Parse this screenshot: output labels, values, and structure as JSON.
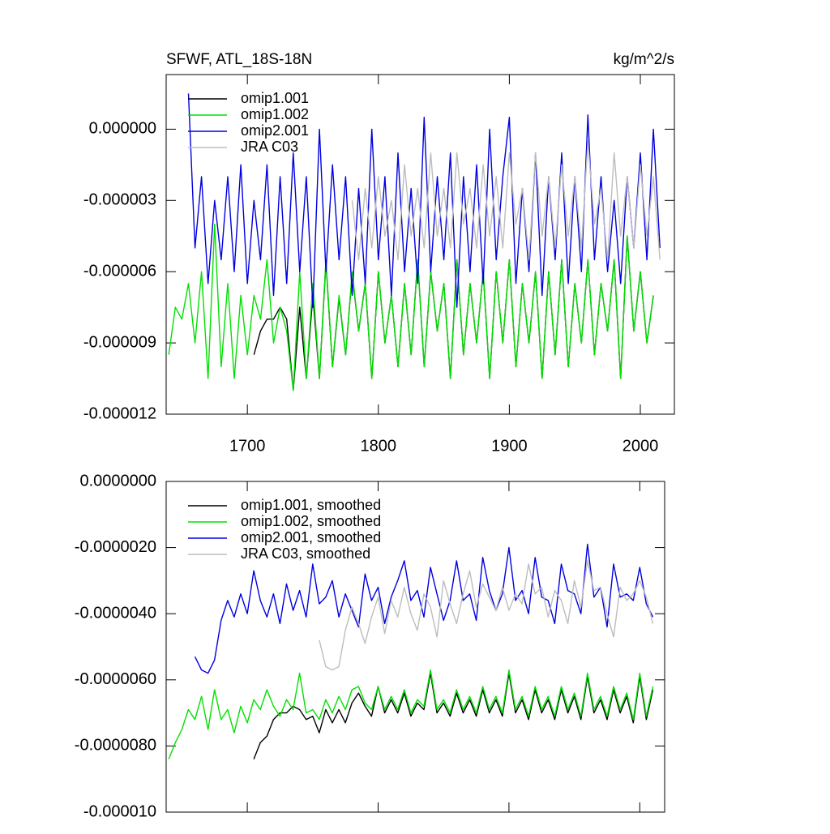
{
  "chart_data": [
    {
      "type": "line",
      "title": "SFWF, ATL_18S-18N",
      "units": "kg/m^2/s",
      "legend": "upper left",
      "xtick_labels": true,
      "xlim": [
        1638,
        2026
      ],
      "xticks": [
        1700,
        1800,
        1900,
        2000
      ],
      "ylim": [
        -1.2e-05,
        2.3e-06
      ],
      "yticks": [
        {
          "value": 0,
          "label": "0.000000"
        },
        {
          "value": -3e-06,
          "label": "-0.000003"
        },
        {
          "value": -6e-06,
          "label": "-0.000006"
        },
        {
          "value": -9e-06,
          "label": "-0.000009"
        },
        {
          "value": -1.2e-05,
          "label": "-0.000012"
        }
      ],
      "x": [
        1640,
        1645,
        1650,
        1655,
        1660,
        1665,
        1670,
        1675,
        1680,
        1685,
        1690,
        1695,
        1700,
        1705,
        1710,
        1715,
        1720,
        1725,
        1730,
        1735,
        1740,
        1745,
        1750,
        1755,
        1760,
        1765,
        1770,
        1775,
        1780,
        1785,
        1790,
        1795,
        1800,
        1805,
        1810,
        1815,
        1820,
        1825,
        1830,
        1835,
        1840,
        1845,
        1850,
        1855,
        1860,
        1865,
        1870,
        1875,
        1880,
        1885,
        1890,
        1895,
        1900,
        1905,
        1910,
        1915,
        1920,
        1925,
        1930,
        1935,
        1940,
        1945,
        1950,
        1955,
        1960,
        1965,
        1970,
        1975,
        1980,
        1985,
        1990,
        1995,
        2000,
        2005,
        2010,
        2015
      ],
      "series": [
        {
          "name": "omip1.001",
          "color": "#000000",
          "values": [
            null,
            null,
            null,
            null,
            null,
            null,
            null,
            null,
            null,
            null,
            null,
            null,
            null,
            -9.5e-06,
            -8.5e-06,
            -8e-06,
            -8e-06,
            -7.5e-06,
            -8e-06,
            -1.1e-05,
            -7.5e-06,
            -1.05e-05,
            -7e-06,
            -1.05e-05,
            -5.6e-06,
            -1e-05,
            -7.1e-06,
            -9.5e-06,
            -6.1e-06,
            -8.5e-06,
            -6.5e-06,
            -1.05e-05,
            -6e-06,
            -9e-06,
            -7e-06,
            -1e-05,
            -6.5e-06,
            -9.5e-06,
            -5.5e-06,
            -1e-05,
            -6e-06,
            -8.5e-06,
            -6.5e-06,
            -1.05e-05,
            -5.5e-06,
            -9.5e-06,
            -6.5e-06,
            -9e-06,
            -6e-06,
            -1.05e-05,
            -6e-06,
            -9e-06,
            -5.5e-06,
            -1e-05,
            -6.5e-06,
            -9e-06,
            -6e-06,
            -1.05e-05,
            -6e-06,
            -9.5e-06,
            -5.5e-06,
            -1e-05,
            -6.5e-06,
            -9e-06,
            -5.5e-06,
            -9.5e-06,
            -6.5e-06,
            -8.5e-06,
            -5.5e-06,
            -1.05e-05,
            -4.5e-06,
            -8.5e-06,
            -6e-06,
            -9e-06,
            -7e-06,
            null
          ]
        },
        {
          "name": "omip1.002",
          "color": "#00e000",
          "values": [
            -9.5e-06,
            -7.5e-06,
            -8e-06,
            -6.5e-06,
            -9e-06,
            -6e-06,
            -1.05e-05,
            -4e-06,
            -1e-05,
            -6.5e-06,
            -1.05e-05,
            -7e-06,
            -9.5e-06,
            -7e-06,
            -8e-06,
            -5.5e-06,
            -9e-06,
            -7.5e-06,
            -8.5e-06,
            -1.1e-05,
            -6e-06,
            -1.05e-05,
            -6.5e-06,
            -1.05e-05,
            -5.5e-06,
            -1e-05,
            -7e-06,
            -9.5e-06,
            -6e-06,
            -8.5e-06,
            -6.5e-06,
            -1.05e-05,
            -6e-06,
            -9e-06,
            -7e-06,
            -1e-05,
            -6.5e-06,
            -9.5e-06,
            -5.5e-06,
            -1e-05,
            -6e-06,
            -8.5e-06,
            -6.5e-06,
            -1.05e-05,
            -5.5e-06,
            -9.5e-06,
            -6.5e-06,
            -9e-06,
            -6e-06,
            -1.05e-05,
            -6e-06,
            -9e-06,
            -5.5e-06,
            -1e-05,
            -6.5e-06,
            -9e-06,
            -6e-06,
            -1.05e-05,
            -6e-06,
            -9.5e-06,
            -5.5e-06,
            -1e-05,
            -6.5e-06,
            -9e-06,
            -5.5e-06,
            -9.5e-06,
            -6.5e-06,
            -8.5e-06,
            -5.5e-06,
            -1.05e-05,
            -4.5e-06,
            -8.5e-06,
            -6e-06,
            -9e-06,
            -7e-06,
            null
          ]
        },
        {
          "name": "omip2.001",
          "color": "#0000e0",
          "values": [
            null,
            null,
            null,
            1.5e-06,
            -5e-06,
            -2e-06,
            -6.5e-06,
            -3e-06,
            -5.5e-06,
            -2e-06,
            -6e-06,
            -1.5e-06,
            -6.5e-06,
            -3e-06,
            -5.5e-06,
            -1.5e-06,
            -7e-06,
            -2e-06,
            -6.5e-06,
            -1e-06,
            -6e-06,
            -2e-06,
            -7.5e-06,
            0,
            -6e-06,
            -1.5e-06,
            -5.5e-06,
            -2e-06,
            -7e-06,
            -2.5e-06,
            -6.5e-06,
            0,
            -5.5e-06,
            -2e-06,
            -7e-06,
            -1e-06,
            -6e-06,
            -2.5e-06,
            -6.5e-06,
            5e-07,
            -6e-06,
            -2e-06,
            -5.5e-06,
            -1e-06,
            -7.5e-06,
            -2e-06,
            -6e-06,
            -1.5e-06,
            -6.5e-06,
            0,
            -5.5e-06,
            -2e-06,
            5e-07,
            -6.5e-06,
            -2.5e-06,
            -6e-06,
            -1e-06,
            -7e-06,
            -2e-06,
            -5.5e-06,
            -1e-06,
            -6.5e-06,
            -2e-06,
            -6e-06,
            6e-07,
            -5.5e-06,
            -2e-06,
            -6e-06,
            -3e-06,
            -6.5e-06,
            -2e-06,
            -5e-06,
            -1e-06,
            -5.5e-06,
            0,
            -5e-06
          ]
        },
        {
          "name": "JRA C03",
          "color": "#bdbdbd",
          "values": [
            null,
            null,
            null,
            null,
            null,
            null,
            null,
            null,
            null,
            null,
            null,
            null,
            null,
            null,
            null,
            null,
            null,
            null,
            null,
            null,
            null,
            null,
            null,
            null,
            null,
            null,
            null,
            null,
            -3e-06,
            -5.5e-06,
            -2.5e-06,
            -5e-06,
            -2e-06,
            -4.5e-06,
            -3e-06,
            -5.5e-06,
            -1.5e-06,
            -4.5e-06,
            -2.5e-06,
            -5e-06,
            -1e-06,
            -4.5e-06,
            -2.5e-06,
            -5e-06,
            -1e-06,
            -4e-06,
            -2.5e-06,
            -5e-06,
            -1.5e-06,
            -4.5e-06,
            -2e-06,
            -5e-06,
            -1e-06,
            -4e-06,
            -2.5e-06,
            -5.5e-06,
            -1e-06,
            -4.5e-06,
            -2e-06,
            -5e-06,
            -1.5e-06,
            -4.5e-06,
            -2e-06,
            -5e-06,
            -5e-07,
            -4e-06,
            -2.5e-06,
            -5.5e-06,
            -1e-06,
            -4.5e-06,
            -2e-06,
            -5e-06,
            -1.5e-06,
            -4.5e-06,
            -2e-06,
            -5.5e-06
          ]
        }
      ]
    },
    {
      "type": "line",
      "legend": "upper left",
      "xtick_labels": false,
      "xlim": [
        1638,
        2019
      ],
      "xticks": [
        1700,
        1800,
        1900,
        2000
      ],
      "ylim": [
        -1e-05,
        0
      ],
      "yticks": [
        {
          "value": 0,
          "label": "0.0000000"
        },
        {
          "value": -2e-06,
          "label": "-0.0000020"
        },
        {
          "value": -4e-06,
          "label": "-0.0000040"
        },
        {
          "value": -6e-06,
          "label": "-0.0000060"
        },
        {
          "value": -8e-06,
          "label": "-0.0000080"
        },
        {
          "value": -1e-05,
          "label": "-0.000010"
        }
      ],
      "x": [
        1640,
        1645,
        1650,
        1655,
        1660,
        1665,
        1670,
        1675,
        1680,
        1685,
        1690,
        1695,
        1700,
        1705,
        1710,
        1715,
        1720,
        1725,
        1730,
        1735,
        1740,
        1745,
        1750,
        1755,
        1760,
        1765,
        1770,
        1775,
        1780,
        1785,
        1790,
        1795,
        1800,
        1805,
        1810,
        1815,
        1820,
        1825,
        1830,
        1835,
        1840,
        1845,
        1850,
        1855,
        1860,
        1865,
        1870,
        1875,
        1880,
        1885,
        1890,
        1895,
        1900,
        1905,
        1910,
        1915,
        1920,
        1925,
        1930,
        1935,
        1940,
        1945,
        1950,
        1955,
        1960,
        1965,
        1970,
        1975,
        1980,
        1985,
        1990,
        1995,
        2000,
        2005,
        2010,
        2015
      ],
      "series": [
        {
          "name": "omip1.001, smoothed",
          "color": "#000000",
          "values": [
            null,
            null,
            null,
            null,
            null,
            null,
            null,
            null,
            null,
            null,
            null,
            null,
            null,
            -8.4e-06,
            -7.9e-06,
            -7.7e-06,
            -7.2e-06,
            -7e-06,
            -7e-06,
            -6.8e-06,
            -6.9e-06,
            -7.2e-06,
            -7.1e-06,
            -7.6e-06,
            -6.9e-06,
            -7.3e-06,
            -6.9e-06,
            -7.3e-06,
            -6.7e-06,
            -6.4e-06,
            -6.8e-06,
            -7.1e-06,
            -6.2e-06,
            -7e-06,
            -6.6e-06,
            -7e-06,
            -6.4e-06,
            -7.1e-06,
            -6.7e-06,
            -6.9e-06,
            -5.8e-06,
            -7e-06,
            -6.7e-06,
            -7.1e-06,
            -6.4e-06,
            -7e-06,
            -6.6e-06,
            -7.1e-06,
            -6.3e-06,
            -7e-06,
            -6.6e-06,
            -7.1e-06,
            -5.8e-06,
            -7e-06,
            -6.6e-06,
            -7.2e-06,
            -6.3e-06,
            -7e-06,
            -6.6e-06,
            -7.2e-06,
            -6.3e-06,
            -7e-06,
            -6.5e-06,
            -7.2e-06,
            -5.9e-06,
            -7e-06,
            -6.6e-06,
            -7.2e-06,
            -6.3e-06,
            -7e-06,
            -6.5e-06,
            -7.3e-06,
            -5.9e-06,
            -7.2e-06,
            -6.3e-06,
            null
          ]
        },
        {
          "name": "omip1.002, smoothed",
          "color": "#00e000",
          "values": [
            -8.4e-06,
            -7.9e-06,
            -7.5e-06,
            -6.9e-06,
            -7.2e-06,
            -6.5e-06,
            -7.5e-06,
            -6.3e-06,
            -7.2e-06,
            -6.9e-06,
            -7.6e-06,
            -6.8e-06,
            -7.3e-06,
            -6.6e-06,
            -6.9e-06,
            -6.3e-06,
            -6.8e-06,
            -7.1e-06,
            -6.6e-06,
            -6.9e-06,
            -5.8e-06,
            -7e-06,
            -6.9e-06,
            -7.2e-06,
            -6.6e-06,
            -7e-06,
            -6.5e-06,
            -6.9e-06,
            -6.3e-06,
            -6.2e-06,
            -6.7e-06,
            -6.9e-06,
            -6.2e-06,
            -6.9e-06,
            -6.5e-06,
            -6.9e-06,
            -6.3e-06,
            -7e-06,
            -6.6e-06,
            -6.8e-06,
            -5.7e-06,
            -6.9e-06,
            -6.6e-06,
            -7e-06,
            -6.3e-06,
            -6.9e-06,
            -6.5e-06,
            -7e-06,
            -6.2e-06,
            -6.9e-06,
            -6.5e-06,
            -7e-06,
            -5.7e-06,
            -6.9e-06,
            -6.5e-06,
            -7.1e-06,
            -6.2e-06,
            -6.9e-06,
            -6.5e-06,
            -7.1e-06,
            -6.2e-06,
            -6.9e-06,
            -6.4e-06,
            -7.1e-06,
            -5.8e-06,
            -6.9e-06,
            -6.5e-06,
            -7.1e-06,
            -6.2e-06,
            -6.9e-06,
            -6.4e-06,
            -7.2e-06,
            -5.8e-06,
            -7.1e-06,
            -6.2e-06,
            null
          ]
        },
        {
          "name": "omip2.001, smoothed",
          "color": "#0000e0",
          "values": [
            null,
            null,
            null,
            null,
            -5.3e-06,
            -5.7e-06,
            -5.8e-06,
            -5.4e-06,
            -4.2e-06,
            -3.6e-06,
            -4.1e-06,
            -3.4e-06,
            -4e-06,
            -2.7e-06,
            -3.6e-06,
            -4.1e-06,
            -3.4e-06,
            -4.3e-06,
            -3.1e-06,
            -3.9e-06,
            -3.3e-06,
            -4.1e-06,
            -2.5e-06,
            -3.7e-06,
            -3.5e-06,
            -3e-06,
            -4.1e-06,
            -3.4e-06,
            -3.9e-06,
            -4.4e-06,
            -2.8e-06,
            -3.6e-06,
            -3.2e-06,
            -4.3e-06,
            -3.5e-06,
            -3e-06,
            -2.4e-06,
            -3.6e-06,
            -3.3e-06,
            -4.1e-06,
            -2.6e-06,
            -3.4e-06,
            -4.2e-06,
            -3.6e-06,
            -2.4e-06,
            -3.6e-06,
            -3.4e-06,
            -4.2e-06,
            -2.3e-06,
            -3.3e-06,
            -3.9e-06,
            -3.4e-06,
            -2e-06,
            -3.6e-06,
            -3.3e-06,
            -4e-06,
            -2.3e-06,
            -3.5e-06,
            -3.6e-06,
            -4.3e-06,
            -2.5e-06,
            -3.3e-06,
            -3.4e-06,
            -4e-06,
            -1.9e-06,
            -3.5e-06,
            -3.2e-06,
            -4.4e-06,
            -2.5e-06,
            -3.5e-06,
            -3.4e-06,
            -3.6e-06,
            -2.6e-06,
            -3.7e-06,
            -4.1e-06,
            null
          ]
        },
        {
          "name": "JRA C03, smoothed",
          "color": "#bdbdbd",
          "values": [
            null,
            null,
            null,
            null,
            null,
            null,
            null,
            null,
            null,
            null,
            null,
            null,
            null,
            null,
            null,
            null,
            null,
            null,
            null,
            null,
            null,
            null,
            null,
            -4.8e-06,
            -5.6e-06,
            -5.7e-06,
            -5.6e-06,
            -4.5e-06,
            -3.8e-06,
            -4.3e-06,
            -4.9e-06,
            -4.1e-06,
            -3.5e-06,
            -4.6e-06,
            -3.6e-06,
            -4.1e-06,
            -3.2e-06,
            -4e-06,
            -4.5e-06,
            -3.4e-06,
            -3.8e-06,
            -4.7e-06,
            -3e-06,
            -3.7e-06,
            -4.3e-06,
            -3.4e-06,
            -2.7e-06,
            -3.8e-06,
            -3.1e-06,
            -3.5e-06,
            -3.9e-06,
            -3.2e-06,
            -3.9e-06,
            -3.4e-06,
            -3.7e-06,
            -2.5e-06,
            -3.4e-06,
            -3.2e-06,
            -4.1e-06,
            -3.3e-06,
            -3.6e-06,
            -4.3e-06,
            -3e-06,
            -3.8e-06,
            -2.4e-06,
            -3.3e-06,
            -3.2e-06,
            -4e-06,
            -4.7e-06,
            -3.2e-06,
            -3.6e-06,
            -3.4e-06,
            -3e-06,
            -3.5e-06,
            -4.3e-06,
            null
          ]
        }
      ]
    }
  ]
}
